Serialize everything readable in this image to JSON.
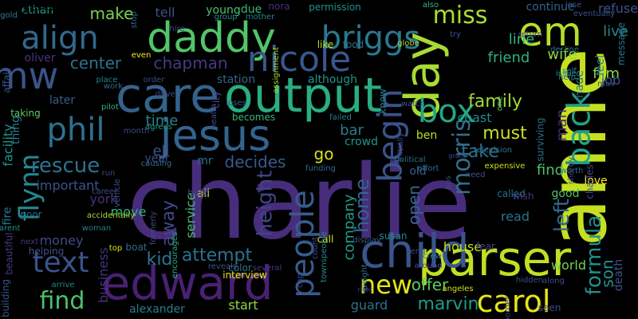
{
  "words": [
    {
      "text": "charlie",
      "color": "#472d7b"
    },
    {
      "text": "anne",
      "color": "#c5e021"
    },
    {
      "text": "edward",
      "color": "#482173"
    },
    {
      "text": "parser",
      "color": "#c2df23"
    },
    {
      "text": "child",
      "color": "#3a548c"
    },
    {
      "text": "daddy",
      "color": "#52c569"
    },
    {
      "text": "care",
      "color": "#33638d"
    },
    {
      "text": "day",
      "color": "#a8db34"
    },
    {
      "text": "output",
      "color": "#28ae80"
    },
    {
      "text": "jesus",
      "color": "#32648e"
    },
    {
      "text": "nicole",
      "color": "#38588c"
    },
    {
      "text": "em",
      "color": "#b5de2b"
    },
    {
      "text": "briggs",
      "color": "#2a788e"
    },
    {
      "text": "begin",
      "color": "#3a538b"
    },
    {
      "text": "back",
      "color": "#1fa187"
    },
    {
      "text": "phil",
      "color": "#2d708e"
    },
    {
      "text": "align",
      "color": "#30698e"
    },
    {
      "text": "mw",
      "color": "#3a548c"
    },
    {
      "text": "box",
      "color": "#22a884"
    },
    {
      "text": "carol",
      "color": "#e5e419"
    },
    {
      "text": "people",
      "color": "#375b8d"
    },
    {
      "text": "find",
      "color": "#4ac16d"
    },
    {
      "text": "text",
      "color": "#3b528b"
    },
    {
      "text": "morris",
      "color": "#2e6e8e"
    },
    {
      "text": "flynn",
      "color": "#23898e"
    },
    {
      "text": "formula",
      "color": "#21918c"
    },
    {
      "text": "left",
      "color": "#31688e"
    },
    {
      "text": "miss",
      "color": "#addc30"
    },
    {
      "text": "new",
      "color": "#e2e418"
    },
    {
      "text": "height",
      "color": "#414487"
    },
    {
      "text": "rescue",
      "color": "#2c728e"
    },
    {
      "text": "family",
      "color": "#9fda3a"
    },
    {
      "text": "must",
      "color": "#c8e020"
    },
    {
      "text": "marvin",
      "color": "#1e9b8a"
    },
    {
      "text": "attempt",
      "color": "#2c728e"
    },
    {
      "text": "son",
      "color": "#21918c"
    },
    {
      "text": "take",
      "color": "#2e6f8e"
    },
    {
      "text": "decides",
      "color": "#38598c"
    },
    {
      "text": "make",
      "color": "#7ad151"
    },
    {
      "text": "center",
      "color": "#2c728e"
    },
    {
      "text": "chapman",
      "color": "#443983"
    },
    {
      "text": "home",
      "color": "#32658e"
    },
    {
      "text": "away",
      "color": "#3f4889"
    },
    {
      "text": "kid",
      "color": "#2a768e"
    },
    {
      "text": "death",
      "color": "#3a548c"
    },
    {
      "text": "open",
      "color": "#31688e"
    },
    {
      "text": "offer",
      "color": "#5ec962"
    },
    {
      "text": "live",
      "color": "#24868e"
    },
    {
      "text": "film",
      "color": "#8bd646"
    },
    {
      "text": "wife",
      "color": "#90d743"
    },
    {
      "text": "friend",
      "color": "#2db27d"
    },
    {
      "text": "line",
      "color": "#32b67a"
    },
    {
      "text": "man",
      "color": "#482979"
    },
    {
      "text": "go",
      "color": "#d8e219"
    },
    {
      "text": "eli",
      "color": "#3a548c"
    },
    {
      "text": "time",
      "color": "#26828e"
    },
    {
      "text": "bar",
      "color": "#297b8e"
    },
    {
      "text": "find",
      "color": "#4ac16d"
    },
    {
      "text": "house",
      "color": "#c0df25"
    },
    {
      "text": "world",
      "color": "#75d054"
    },
    {
      "text": "refuse",
      "color": "#3b528b"
    },
    {
      "text": "company",
      "color": "#1e9c89"
    },
    {
      "text": "job",
      "color": "#39568c"
    },
    {
      "text": "tell",
      "color": "#3b528b"
    },
    {
      "text": "ethan",
      "color": "#1fa088"
    },
    {
      "text": "oliver",
      "color": "#46337f"
    },
    {
      "text": "later",
      "color": "#355f8d"
    },
    {
      "text": "thing",
      "color": "#26818e"
    },
    {
      "text": "important",
      "color": "#3a548c"
    },
    {
      "text": "york",
      "color": "#46327e"
    },
    {
      "text": "move",
      "color": "#2db27d"
    },
    {
      "text": "money",
      "color": "#3e4a89"
    },
    {
      "text": "station",
      "color": "#33638d"
    },
    {
      "text": "although",
      "color": "#1f958b"
    },
    {
      "text": "young",
      "color": "#4ac16d"
    },
    {
      "text": "due",
      "color": "#35b779"
    },
    {
      "text": "nora",
      "color": "#46307e"
    },
    {
      "text": "permission",
      "color": "#21918c"
    },
    {
      "text": "continue",
      "color": "#33638d"
    },
    {
      "text": "start",
      "color": "#90d743"
    },
    {
      "text": "alexander",
      "color": "#287d8e"
    },
    {
      "text": "business",
      "color": "#46327e"
    },
    {
      "text": "guard",
      "color": "#2c728e"
    },
    {
      "text": "good",
      "color": "#50c46a"
    },
    {
      "text": "love",
      "color": "#fde725"
    },
    {
      "text": "read",
      "color": "#2c728e"
    },
    {
      "text": "ben",
      "color": "#b8de29"
    },
    {
      "text": "old",
      "color": "#355f8d"
    },
    {
      "text": "crowd",
      "color": "#1f978b"
    },
    {
      "text": "coast",
      "color": "#228c8d"
    },
    {
      "text": "ali",
      "color": "#b5de2b"
    },
    {
      "text": "mr",
      "color": "#2c728e"
    },
    {
      "text": "year",
      "color": "#3e4989"
    },
    {
      "text": "service",
      "color": "#44bf70"
    },
    {
      "text": "best",
      "color": "#453781"
    },
    {
      "text": "boat",
      "color": "#31688e"
    },
    {
      "text": "call",
      "color": "#dde318"
    },
    {
      "text": "susan",
      "color": "#23898e"
    },
    {
      "text": "fear",
      "color": "#414487"
    },
    {
      "text": "like",
      "color": "#c2df23"
    },
    {
      "text": "food",
      "color": "#2f6c8e"
    },
    {
      "text": "city",
      "color": "#3f4788"
    },
    {
      "text": "becomes",
      "color": "#35b779"
    },
    {
      "text": "loses",
      "color": "#38598c"
    },
    {
      "text": "know",
      "color": "#26828e"
    },
    {
      "text": "failed",
      "color": "#27808e"
    },
    {
      "text": "television",
      "color": "#2a788e"
    },
    {
      "text": "expensive",
      "color": "#d0e11c"
    },
    {
      "text": "called",
      "color": "#2c728e"
    },
    {
      "text": "wish",
      "color": "#443a83"
    },
    {
      "text": "need",
      "color": "#3e4c8a"
    },
    {
      "text": "effort",
      "color": "#2f6b8e"
    },
    {
      "text": "funding",
      "color": "#31688e"
    },
    {
      "text": "display",
      "color": "#375a8c"
    },
    {
      "text": "townspeople",
      "color": "#23898e"
    },
    {
      "text": "interview",
      "color": "#e2e418"
    },
    {
      "text": "several",
      "color": "#433d84"
    },
    {
      "text": "reveals",
      "color": "#3b528b"
    },
    {
      "text": "color",
      "color": "#2a768e"
    },
    {
      "text": "encourages",
      "color": "#29af7f"
    },
    {
      "text": "helping",
      "color": "#3b528b"
    },
    {
      "text": "next",
      "color": "#453781"
    },
    {
      "text": "arrive",
      "color": "#24878e"
    },
    {
      "text": "building",
      "color": "#3b528b"
    },
    {
      "text": "beautiful",
      "color": "#443983"
    },
    {
      "text": "parent",
      "color": "#21918c"
    },
    {
      "text": "fire",
      "color": "#2a778e"
    },
    {
      "text": "poor",
      "color": "#2e6e8e"
    },
    {
      "text": "career",
      "color": "#3e4c8a"
    },
    {
      "text": "woman",
      "color": "#26828e"
    },
    {
      "text": "accidentally",
      "color": "#a5db36"
    },
    {
      "text": "causing",
      "color": "#2e6f8e"
    },
    {
      "text": "run",
      "color": "#404588"
    },
    {
      "text": "vehicle",
      "color": "#3b528b"
    },
    {
      "text": "facility",
      "color": "#20928c"
    },
    {
      "text": "taking",
      "color": "#5ec962"
    },
    {
      "text": "pilot",
      "color": "#31b57b"
    },
    {
      "text": "month",
      "color": "#404688"
    },
    {
      "text": "agrees",
      "color": "#1e9c89"
    },
    {
      "text": "health",
      "color": "#3b518b"
    },
    {
      "text": "initially",
      "color": "#3f4788"
    },
    {
      "text": "political",
      "color": "#2e6f8e"
    },
    {
      "text": "grant",
      "color": "#3e4c8a"
    },
    {
      "text": "one",
      "color": "#5cc863"
    },
    {
      "text": "surviving",
      "color": "#2d708e"
    },
    {
      "text": "worth",
      "color": "#2f6c8e"
    },
    {
      "text": "made",
      "color": "#2c728e"
    },
    {
      "text": "issue",
      "color": "#1f968b"
    },
    {
      "text": "help",
      "color": "#2e6e8e"
    },
    {
      "text": "self",
      "color": "#26828e"
    },
    {
      "text": "max",
      "color": "#3e4c8a"
    },
    {
      "text": "feel",
      "color": "#2a788e"
    },
    {
      "text": "decline",
      "color": "#2d708e"
    },
    {
      "text": "return",
      "color": "#414487"
    },
    {
      "text": "try",
      "color": "#3b528b"
    },
    {
      "text": "watch",
      "color": "#3e4c8a"
    },
    {
      "text": "globe",
      "color": "#a2da37"
    },
    {
      "text": "gold",
      "color": "#277f8e"
    },
    {
      "text": "stop",
      "color": "#2f6b8e"
    },
    {
      "text": "hire",
      "color": "#3e4989"
    },
    {
      "text": "group",
      "color": "#20938c"
    },
    {
      "text": "mother",
      "color": "#228c8d"
    },
    {
      "text": "also",
      "color": "#35b779"
    },
    {
      "text": "lose",
      "color": "#3b528b"
    },
    {
      "text": "eventually",
      "color": "#3a548c"
    },
    {
      "text": "message",
      "color": "#2a788e"
    },
    {
      "text": "even",
      "color": "#fde725"
    },
    {
      "text": "place",
      "color": "#25858e"
    },
    {
      "text": "work",
      "color": "#31688e"
    },
    {
      "text": "order",
      "color": "#3e4c8a"
    },
    {
      "text": "drive",
      "color": "#3f4788"
    },
    {
      "text": "affair",
      "color": "#3b528b"
    },
    {
      "text": "assignment",
      "color": "#a5db36"
    },
    {
      "text": "crew",
      "color": "#2a788e"
    },
    {
      "text": "around",
      "color": "#3e4c8a"
    },
    {
      "text": "cap",
      "color": "#3e4c8a"
    },
    {
      "text": "weight",
      "color": "#2f6c8e"
    },
    {
      "text": "right",
      "color": "#3e4c8a"
    },
    {
      "text": "angeles",
      "color": "#d0e11c"
    },
    {
      "text": "border",
      "color": "#433d84"
    },
    {
      "text": "hidden",
      "color": "#3e4c8a"
    },
    {
      "text": "along",
      "color": "#3e4c8a"
    },
    {
      "text": "seen",
      "color": "#3e4c8a"
    },
    {
      "text": "count",
      "color": "#3e4c8a"
    },
    {
      "text": "top",
      "color": "#dde318"
    },
    {
      "text": "formerly",
      "color": "#3e4c8a"
    },
    {
      "text": "bos",
      "color": "#3e4c8a"
    },
    {
      "text": "end",
      "color": "#3e4c8a"
    },
    {
      "text": "shortly",
      "color": "#3e4c8a"
    },
    {
      "text": "charles",
      "color": "#3e4c8a"
    },
    {
      "text": "lawyer",
      "color": "#3b528b"
    },
    {
      "text": "convinces",
      "color": "#414487"
    }
  ]
}
